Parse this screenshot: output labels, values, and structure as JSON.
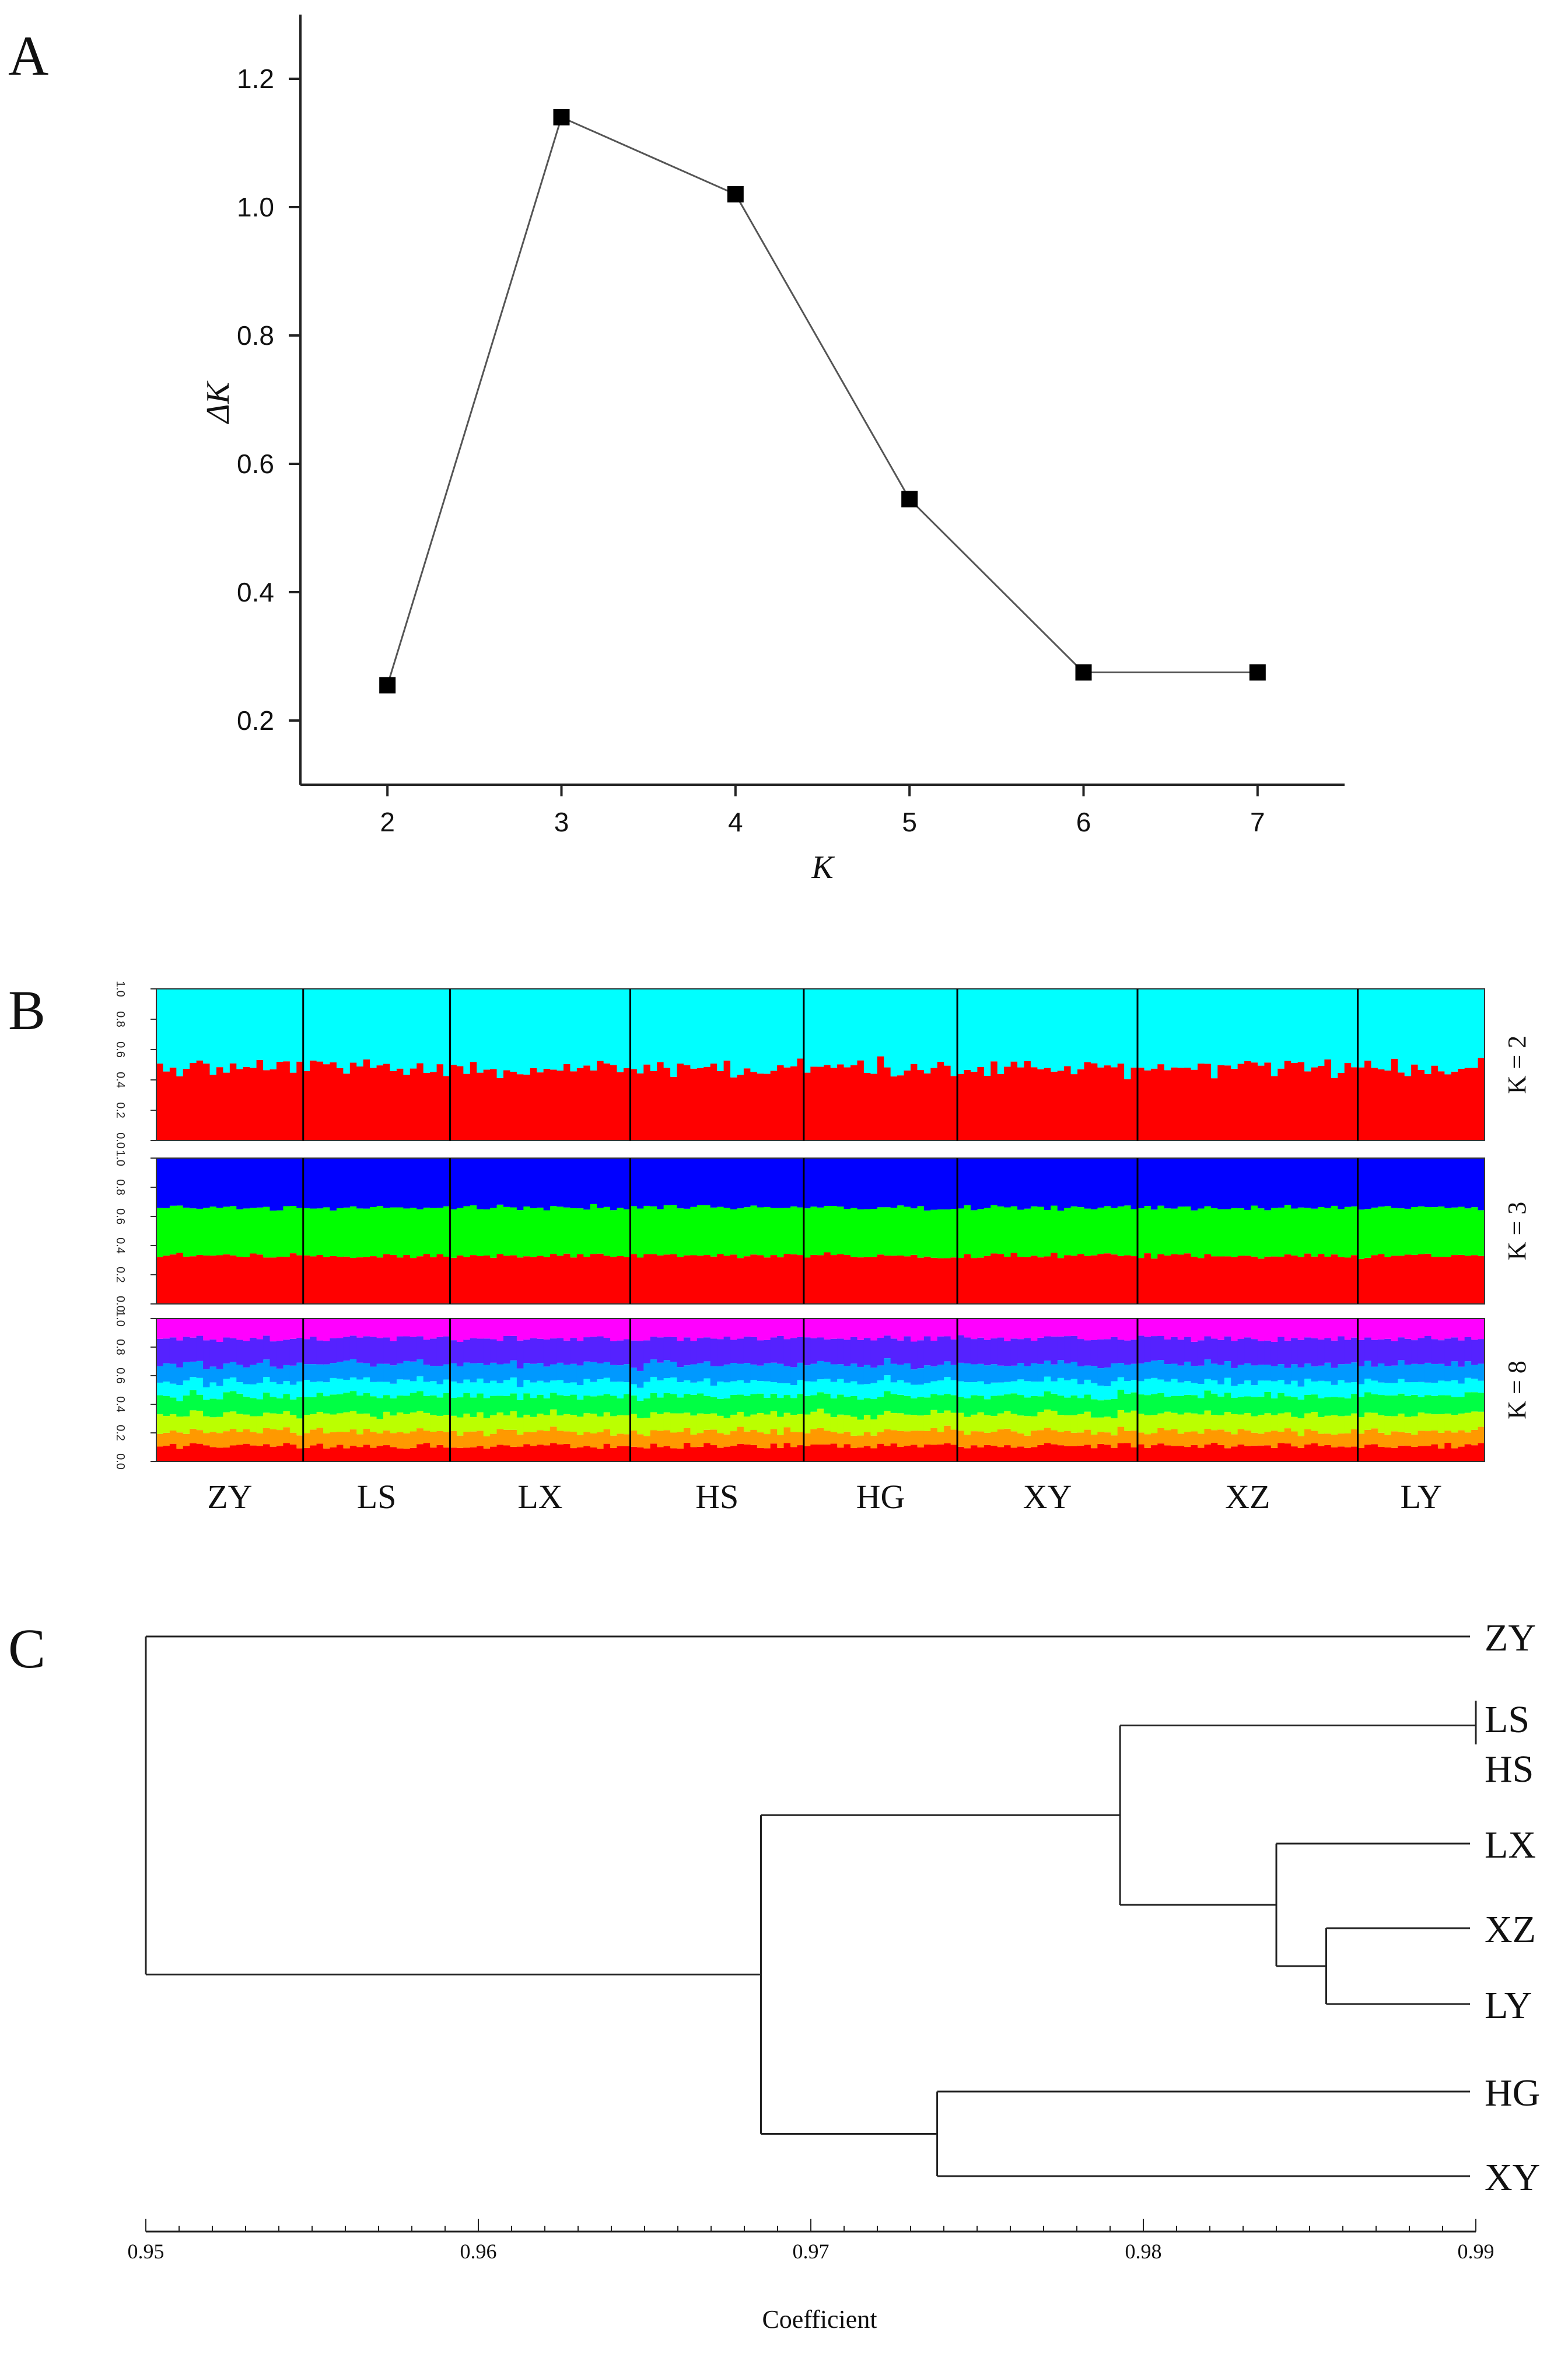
{
  "panels": {
    "a": "A",
    "b": "B",
    "c": "C"
  },
  "chart_data": [
    {
      "type": "line",
      "panel": "A",
      "title": "",
      "xlabel": "K",
      "ylabel": "ΔK",
      "x": [
        2,
        3,
        4,
        5,
        6,
        7
      ],
      "y": [
        0.255,
        1.14,
        1.02,
        0.545,
        0.275,
        0.275
      ],
      "xticks": [
        "2",
        "3",
        "4",
        "5",
        "6",
        "7"
      ],
      "yticks": [
        "0.2",
        "0.4",
        "0.6",
        "0.8",
        "1.0",
        "1.2"
      ],
      "xlim": [
        1.5,
        7.5
      ],
      "ylim": [
        0.1,
        1.3
      ],
      "marker": "square",
      "colors": {
        "line": "#555555",
        "marker": "#000000"
      }
    },
    {
      "type": "bar",
      "subtype": "stacked-structure",
      "panel": "B",
      "populations": [
        "ZY",
        "LS",
        "LX",
        "HS",
        "HG",
        "XY",
        "XZ",
        "LY"
      ],
      "individuals_per_population": [
        22,
        22,
        27,
        26,
        23,
        27,
        33,
        19
      ],
      "ytick_labels": [
        "0.0",
        "0.2",
        "0.4",
        "0.6",
        "0.8",
        "1.0"
      ],
      "rows": [
        {
          "label": "K = 2",
          "mean_proportions": [
            0.48,
            0.52
          ],
          "colors": [
            "#ff0000",
            "#00ffff"
          ]
        },
        {
          "label": "K = 3",
          "mean_proportions": [
            0.33,
            0.33,
            0.34
          ],
          "colors": [
            "#ff0000",
            "#00ff00",
            "#0000ff"
          ]
        },
        {
          "label": "K = 8",
          "mean_proportions": [
            0.11,
            0.1,
            0.12,
            0.13,
            0.1,
            0.12,
            0.18,
            0.14
          ],
          "colors": [
            "#ff0000",
            "#ff9900",
            "#bbff00",
            "#00ff44",
            "#00ffff",
            "#0099ff",
            "#5522ff",
            "#ff00ff"
          ]
        }
      ]
    },
    {
      "type": "dendrogram",
      "panel": "C",
      "xlabel": "Coefficient",
      "xlim": [
        0.95,
        0.99
      ],
      "xticks": [
        "0.95",
        "0.96",
        "0.97",
        "0.98",
        "0.99"
      ],
      "leaves": [
        "ZY",
        "LS",
        "HS",
        "LX",
        "XZ",
        "LY",
        "HG",
        "XY"
      ],
      "merges": [
        {
          "clusters": [
            "LS",
            "HS"
          ],
          "height": 0.99
        },
        {
          "clusters": [
            "XZ",
            "LY"
          ],
          "height": 0.9855
        },
        {
          "clusters": [
            "LX",
            "XZ+LY"
          ],
          "height": 0.984
        },
        {
          "clusters": [
            "LS+HS",
            "LX+XZ+LY"
          ],
          "height": 0.9793
        },
        {
          "clusters": [
            "HG",
            "XY"
          ],
          "height": 0.9738
        },
        {
          "clusters": [
            "LS..LY",
            "HG+XY"
          ],
          "height": 0.9685
        },
        {
          "clusters": [
            "ZY",
            "rest"
          ],
          "height": 0.95
        }
      ]
    }
  ]
}
